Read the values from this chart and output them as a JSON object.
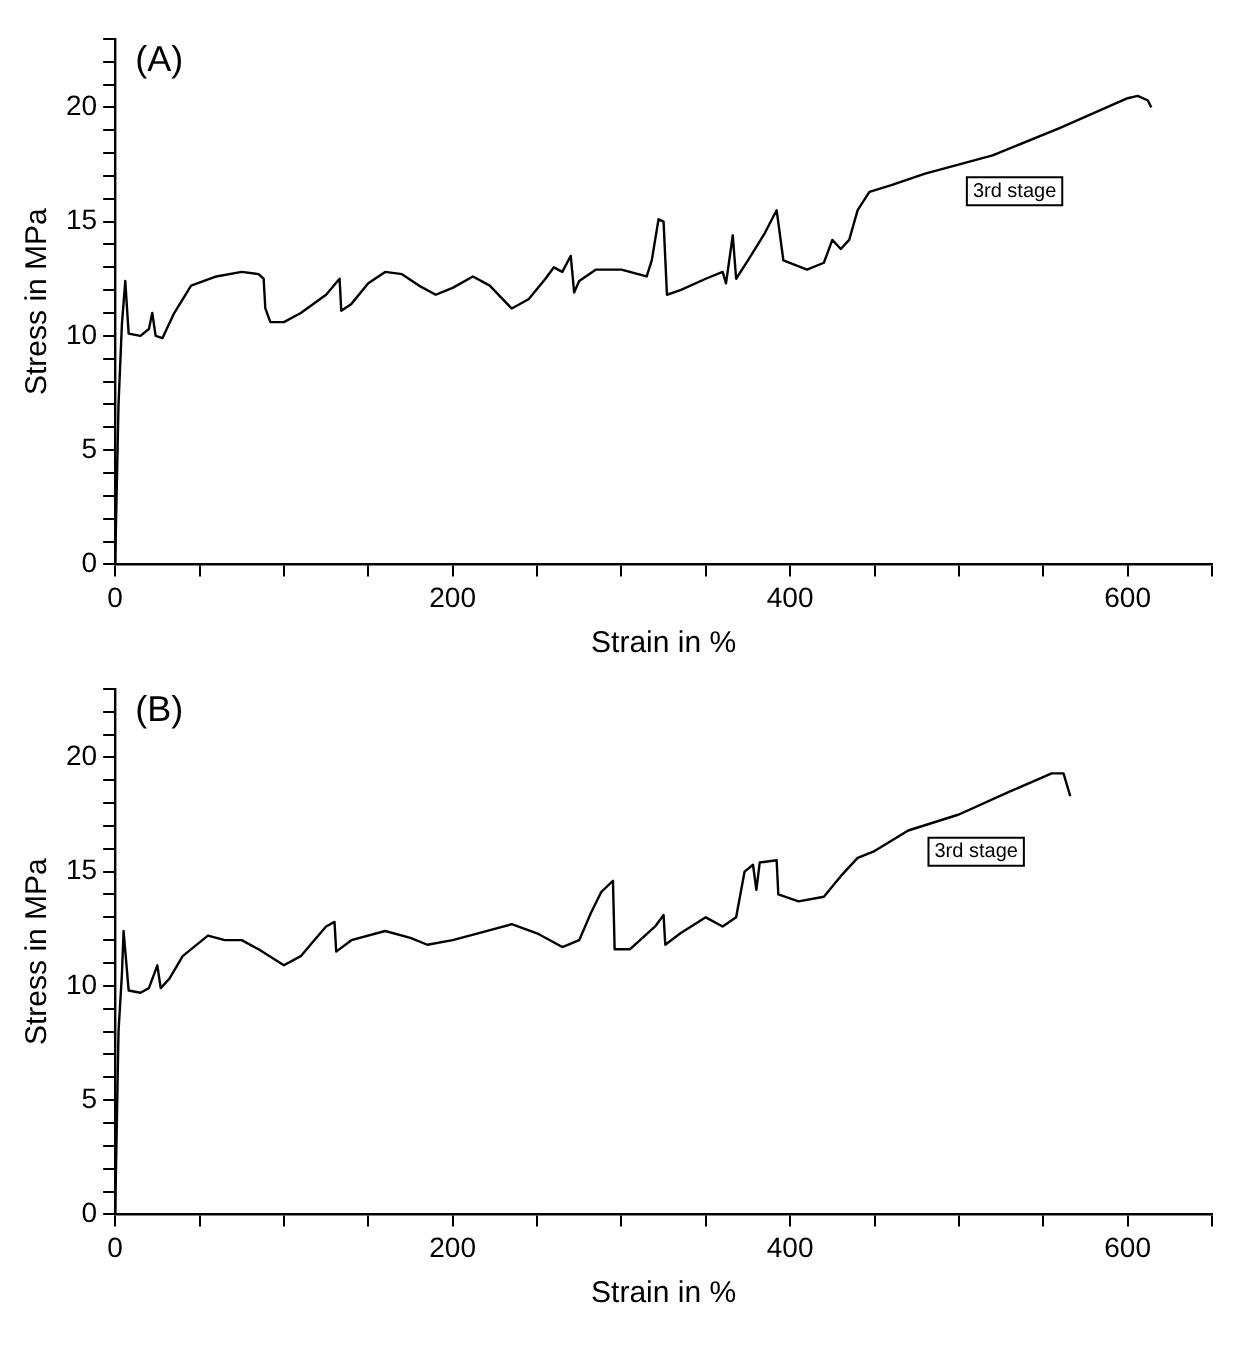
{
  "chart_data": [
    {
      "type": "line",
      "title": "(A)",
      "xlabel": "Strain in %",
      "ylabel": "Stress in MPa",
      "xlim": [
        0,
        650
      ],
      "ylim": [
        0,
        23
      ],
      "xticks": [
        0,
        {
          "value": 50,
          "label": null
        },
        {
          "value": 100,
          "label": null
        },
        {
          "value": 150,
          "label": null
        },
        200,
        {
          "value": 250,
          "label": null
        },
        {
          "value": 300,
          "label": null
        },
        {
          "value": 350,
          "label": null
        },
        400,
        {
          "value": 450,
          "label": null
        },
        {
          "value": 500,
          "label": null
        },
        {
          "value": 550,
          "label": null
        },
        600,
        {
          "value": 650,
          "label": null
        }
      ],
      "yticks": [
        0,
        {
          "value": 1,
          "label": null
        },
        {
          "value": 2,
          "label": null
        },
        {
          "value": 3,
          "label": null
        },
        {
          "value": 4,
          "label": null
        },
        5,
        {
          "value": 6,
          "label": null
        },
        {
          "value": 7,
          "label": null
        },
        {
          "value": 8,
          "label": null
        },
        {
          "value": 9,
          "label": null
        },
        10,
        {
          "value": 11,
          "label": null
        },
        {
          "value": 12,
          "label": null
        },
        {
          "value": 13,
          "label": null
        },
        {
          "value": 14,
          "label": null
        },
        15,
        {
          "value": 16,
          "label": null
        },
        {
          "value": 17,
          "label": null
        },
        {
          "value": 18,
          "label": null
        },
        {
          "value": 19,
          "label": null
        },
        20,
        {
          "value": 21,
          "label": null
        },
        {
          "value": 22,
          "label": null
        },
        {
          "value": 23,
          "label": null
        }
      ],
      "grid": false,
      "legend": false,
      "marker": "none",
      "annotations": [
        "3rd stage"
      ],
      "series": [
        {
          "color": "#000000",
          "x": [
            0,
            2,
            4,
            6,
            8,
            15,
            20,
            22,
            24,
            28,
            35,
            45,
            60,
            75,
            85,
            88,
            89,
            92,
            100,
            110,
            125,
            133,
            134,
            140,
            150,
            160,
            170,
            180,
            190,
            200,
            212,
            222,
            235,
            245,
            255,
            260,
            265,
            270,
            272,
            275,
            285,
            300,
            315,
            318,
            322,
            325,
            327,
            335,
            350,
            360,
            362,
            366,
            368,
            375,
            385,
            392,
            396,
            410,
            420,
            425,
            430,
            435,
            440,
            447,
            460,
            480,
            520,
            560,
            600,
            606,
            612,
            614
          ],
          "values": [
            0,
            7,
            10.5,
            12.4,
            10.1,
            10,
            10.3,
            11,
            10,
            9.9,
            11,
            12.2,
            12.6,
            12.8,
            12.7,
            12.5,
            11.2,
            10.6,
            10.6,
            11,
            11.8,
            12.5,
            11.1,
            11.4,
            12.3,
            12.8,
            12.7,
            12.2,
            11.8,
            12.1,
            12.6,
            12.2,
            11.2,
            11.6,
            12.5,
            13,
            12.8,
            13.5,
            11.9,
            12.4,
            12.9,
            12.9,
            12.6,
            13.3,
            15.1,
            15,
            11.8,
            12,
            12.5,
            12.8,
            12.3,
            14.4,
            12.5,
            13.3,
            14.5,
            15.5,
            13.3,
            12.9,
            13.2,
            14.2,
            13.8,
            14.2,
            15.5,
            16.3,
            16.6,
            17.1,
            17.9,
            19.1,
            20.4,
            20.5,
            20.3,
            20
          ]
        }
      ]
    },
    {
      "type": "line",
      "title": "(B)",
      "xlabel": "Strain in %",
      "ylabel": "Stress in MPa",
      "xlim": [
        0,
        650
      ],
      "ylim": [
        0,
        23
      ],
      "xticks": [
        0,
        {
          "value": 50,
          "label": null
        },
        {
          "value": 100,
          "label": null
        },
        {
          "value": 150,
          "label": null
        },
        200,
        {
          "value": 250,
          "label": null
        },
        {
          "value": 300,
          "label": null
        },
        {
          "value": 350,
          "label": null
        },
        400,
        {
          "value": 450,
          "label": null
        },
        {
          "value": 500,
          "label": null
        },
        {
          "value": 550,
          "label": null
        },
        600,
        {
          "value": 650,
          "label": null
        }
      ],
      "yticks": [
        0,
        {
          "value": 1,
          "label": null
        },
        {
          "value": 2,
          "label": null
        },
        {
          "value": 3,
          "label": null
        },
        {
          "value": 4,
          "label": null
        },
        5,
        {
          "value": 6,
          "label": null
        },
        {
          "value": 7,
          "label": null
        },
        {
          "value": 8,
          "label": null
        },
        {
          "value": 9,
          "label": null
        },
        10,
        {
          "value": 11,
          "label": null
        },
        {
          "value": 12,
          "label": null
        },
        {
          "value": 13,
          "label": null
        },
        {
          "value": 14,
          "label": null
        },
        15,
        {
          "value": 16,
          "label": null
        },
        {
          "value": 17,
          "label": null
        },
        {
          "value": 18,
          "label": null
        },
        {
          "value": 19,
          "label": null
        },
        20,
        {
          "value": 21,
          "label": null
        },
        {
          "value": 22,
          "label": null
        },
        {
          "value": 23,
          "label": null
        }
      ],
      "grid": false,
      "legend": false,
      "marker": "none",
      "annotations": [
        "3rd stage"
      ],
      "series": [
        {
          "color": "#000000",
          "x": [
            0,
            2,
            4,
            5,
            8,
            15,
            20,
            25,
            27,
            32,
            40,
            55,
            65,
            75,
            85,
            100,
            110,
            118,
            125,
            130,
            131,
            140,
            160,
            175,
            185,
            200,
            215,
            235,
            250,
            265,
            275,
            282,
            288,
            295,
            296,
            305,
            320,
            325,
            326,
            335,
            350,
            360,
            368,
            373,
            378,
            380,
            382,
            392,
            393,
            405,
            420,
            430,
            440,
            450,
            470,
            500,
            530,
            555,
            562,
            566
          ],
          "values": [
            0,
            8,
            10.5,
            12.4,
            9.8,
            9.7,
            9.9,
            10.9,
            9.9,
            10.3,
            11.3,
            12.2,
            12,
            12,
            11.6,
            10.9,
            11.3,
            12,
            12.6,
            12.8,
            11.5,
            12,
            12.4,
            12.1,
            11.8,
            12,
            12.3,
            12.7,
            12.3,
            11.7,
            12,
            13.2,
            14.1,
            14.6,
            11.6,
            11.6,
            12.6,
            13.1,
            11.8,
            12.3,
            13,
            12.6,
            13,
            15,
            15.3,
            14.2,
            15.4,
            15.5,
            14,
            13.7,
            13.9,
            14.8,
            15.6,
            15.9,
            16.8,
            17.5,
            18.5,
            19.3,
            19.3,
            18.3
          ]
        }
      ]
    }
  ]
}
